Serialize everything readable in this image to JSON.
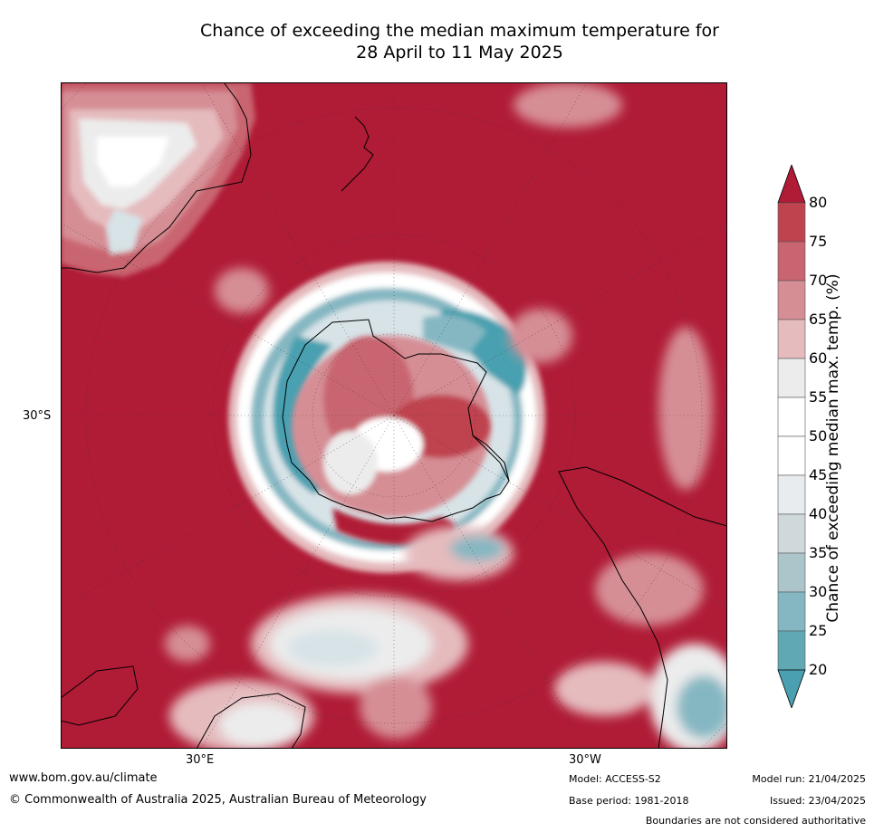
{
  "title": {
    "line1": "Chance of exceeding the median maximum temperature for",
    "line2": "28 April to 11 May 2025"
  },
  "axes": {
    "lat_label": "30°S",
    "lon_label_left": "30°E",
    "lon_label_right": "30°W"
  },
  "colorbar": {
    "title": "Chance of exceeding median max. temp. (%)",
    "ticks": [
      "80",
      "75",
      "70",
      "65",
      "60",
      "55",
      "50",
      "45",
      "40",
      "35",
      "30",
      "25",
      "20"
    ],
    "colors": [
      "#b01b36",
      "#bf424f",
      "#c96570",
      "#d68e95",
      "#e5bbbe",
      "#ececec",
      "#ffffff",
      "#ffffff",
      "#e8ecee",
      "#cfd8db",
      "#abc5cb",
      "#85b7c2",
      "#61a8b5",
      "#4aa0b0"
    ]
  },
  "map_colors": {
    "deep_red": "#b01b36",
    "red": "#bf424f",
    "mid_red": "#c96570",
    "light_red": "#d68e95",
    "pink": "#e5bbbe",
    "light_grey": "#ececec",
    "white": "#ffffff",
    "pale_blue": "#d7e3e7",
    "blue": "#85b7c2",
    "teal": "#4aa0b0"
  },
  "footer": {
    "website": "www.bom.gov.au/climate",
    "copyright": "© Commonwealth of Australia 2025, Australian Bureau of Meteorology",
    "model": "Model: ACCESS-S2",
    "base_period": "Base period: 1981-2018",
    "model_run": "Model run: 21/04/2025",
    "issued": "Issued: 23/04/2025",
    "disclaimer": "Boundaries are not considered authoritative"
  }
}
